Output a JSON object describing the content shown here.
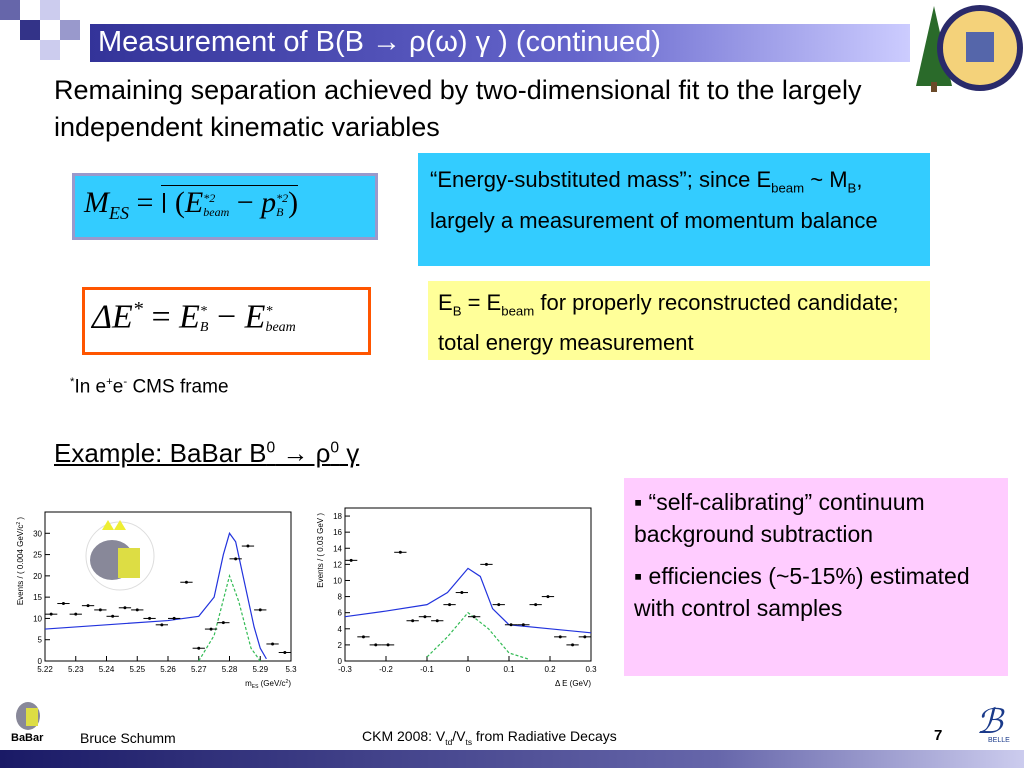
{
  "title": "Measurement of B(B → ρ(ω) γ ) (continued)",
  "intro": "Remaining separation achieved by two-dimensional fit to the largely independent kinematic variables",
  "formula_mes": [
    "M",
    "ES",
    "=",
    "(",
    "E",
    "*2",
    "beam",
    "−",
    "p",
    "*2",
    "B",
    ")"
  ],
  "formula_de": [
    "ΔE",
    "*",
    "=",
    "E",
    "*",
    "B",
    "−",
    "E",
    "*",
    "beam"
  ],
  "note_mes": [
    "“Energy-substituted mass”; since E",
    "beam",
    " ~ M",
    "B",
    ", largely a measurement of momentum balance"
  ],
  "note_de": [
    "E",
    "B",
    " = E",
    "beam",
    " for properly reconstructed candidate; total energy measurement"
  ],
  "footnote": [
    "*",
    "In e",
    "+",
    "e",
    "-",
    " CMS frame"
  ],
  "example": [
    "Example: BaBar B",
    "0",
    " → ρ",
    "0",
    " γ"
  ],
  "bullets": [
    "“self-calibrating” continuum background subtraction",
    "efficiencies (~5-15%) estimated with control samples"
  ],
  "plots": [
    {
      "ylabel": [
        "Events / ( 0.004 GeV/c",
        "2",
        " )"
      ],
      "xlabel": [
        "m",
        "ES",
        " (GeV/c",
        "2",
        ")"
      ],
      "xlim": [
        5.22,
        5.3
      ],
      "ylim": [
        0,
        35
      ],
      "xticks": [
        5.22,
        5.23,
        5.24,
        5.25,
        5.26,
        5.27,
        5.28,
        5.29,
        5.3
      ],
      "yticks": [
        0,
        5,
        10,
        15,
        20,
        25,
        30
      ],
      "x": [
        5.222,
        5.226,
        5.23,
        5.234,
        5.238,
        5.242,
        5.246,
        5.25,
        5.254,
        5.258,
        5.262,
        5.266,
        5.27,
        5.274,
        5.278,
        5.282,
        5.286,
        5.29,
        5.294,
        5.298
      ],
      "y": [
        11,
        13.5,
        11,
        13,
        12,
        10.5,
        12.5,
        12,
        10,
        8.5,
        10,
        18.5,
        3,
        7.5,
        9,
        24,
        27,
        12,
        4,
        2
      ],
      "curves": [
        {
          "color": "#2233dd",
          "x": [
            5.22,
            5.24,
            5.26,
            5.27,
            5.275,
            5.278,
            5.28,
            5.282,
            5.285,
            5.288,
            5.29,
            5.292
          ],
          "y": [
            7.5,
            8.5,
            9.5,
            10.5,
            15,
            25,
            30,
            28,
            18,
            8,
            3,
            0.5
          ]
        },
        {
          "color": "#33bb55",
          "x": [
            5.27,
            5.275,
            5.28,
            5.283,
            5.287,
            5.29
          ],
          "y": [
            0,
            6,
            20,
            14,
            3,
            0
          ]
        }
      ]
    },
    {
      "ylabel": [
        "Events / ( 0.03 GeV )"
      ],
      "xlabel": [
        "Δ E (GeV)"
      ],
      "xlim": [
        -0.3,
        0.3
      ],
      "ylim": [
        0,
        19
      ],
      "xticks": [
        -0.3,
        -0.2,
        -0.1,
        0,
        0.1,
        0.2,
        0.3
      ],
      "yticks": [
        0,
        2,
        4,
        6,
        8,
        10,
        12,
        14,
        16,
        18
      ],
      "x": [
        -0.285,
        -0.255,
        -0.225,
        -0.195,
        -0.165,
        -0.135,
        -0.105,
        -0.075,
        -0.045,
        -0.015,
        0.015,
        0.045,
        0.075,
        0.105,
        0.135,
        0.165,
        0.195,
        0.225,
        0.255,
        0.285
      ],
      "y": [
        12.5,
        3,
        2,
        2,
        13.5,
        5,
        5.5,
        5,
        7,
        8.5,
        5.5,
        12,
        7,
        4.5,
        4.5,
        7,
        8,
        3,
        2,
        3
      ],
      "curves": [
        {
          "color": "#2233dd",
          "x": [
            -0.3,
            -0.2,
            -0.1,
            -0.05,
            0,
            0.03,
            0.06,
            0.1,
            0.2,
            0.3
          ],
          "y": [
            5.5,
            6.2,
            7,
            8.5,
            11.5,
            10.5,
            6.5,
            4.5,
            4,
            3.5
          ]
        },
        {
          "color": "#33bb55",
          "x": [
            -0.1,
            -0.05,
            0,
            0.05,
            0.1,
            0.15
          ],
          "y": [
            0.5,
            3,
            6,
            4,
            1,
            0.2
          ]
        }
      ]
    }
  ],
  "footer": {
    "author": "Bruce Schumm",
    "talk": [
      "CKM 2008: V",
      "td",
      "/V",
      "ts",
      " from Radiative Decays"
    ],
    "page": "7",
    "babar": "BaBar",
    "belle": "BELLE"
  }
}
